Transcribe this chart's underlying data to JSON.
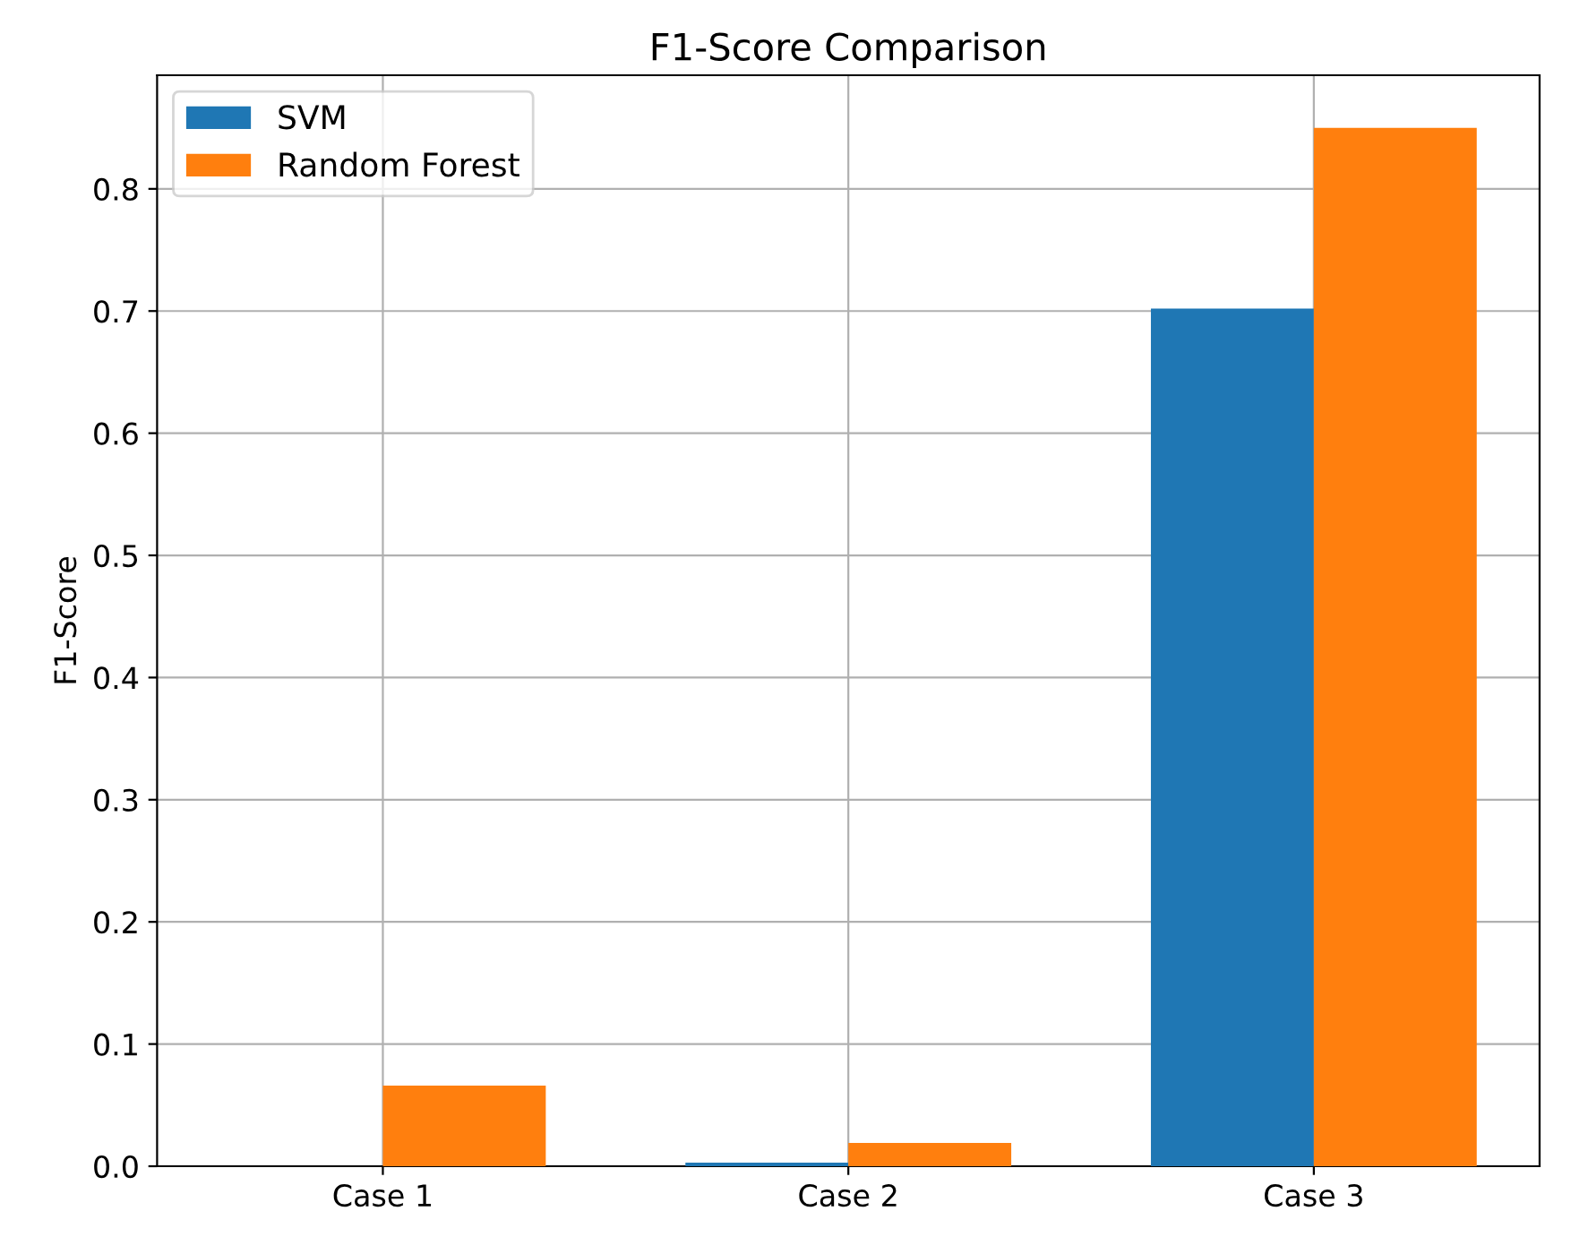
{
  "chart_data": {
    "type": "bar",
    "title": "F1-Score Comparison",
    "ylabel": "F1-Score",
    "categories": [
      "Case 1",
      "Case 2",
      "Case 3"
    ],
    "series": [
      {
        "name": "SVM",
        "color": "#1f77b4",
        "values": [
          0.0,
          0.003,
          0.702
        ]
      },
      {
        "name": "Random Forest",
        "color": "#ff7f0e",
        "values": [
          0.066,
          0.019,
          0.85
        ]
      }
    ],
    "ylim": [
      0,
      0.893
    ],
    "yticks": [
      {
        "value": 0,
        "label": "0.0"
      },
      0.1,
      0.2,
      0.3,
      0.4,
      0.5,
      0.6,
      0.7,
      0.8
    ],
    "grid": true,
    "legend": "top left"
  }
}
